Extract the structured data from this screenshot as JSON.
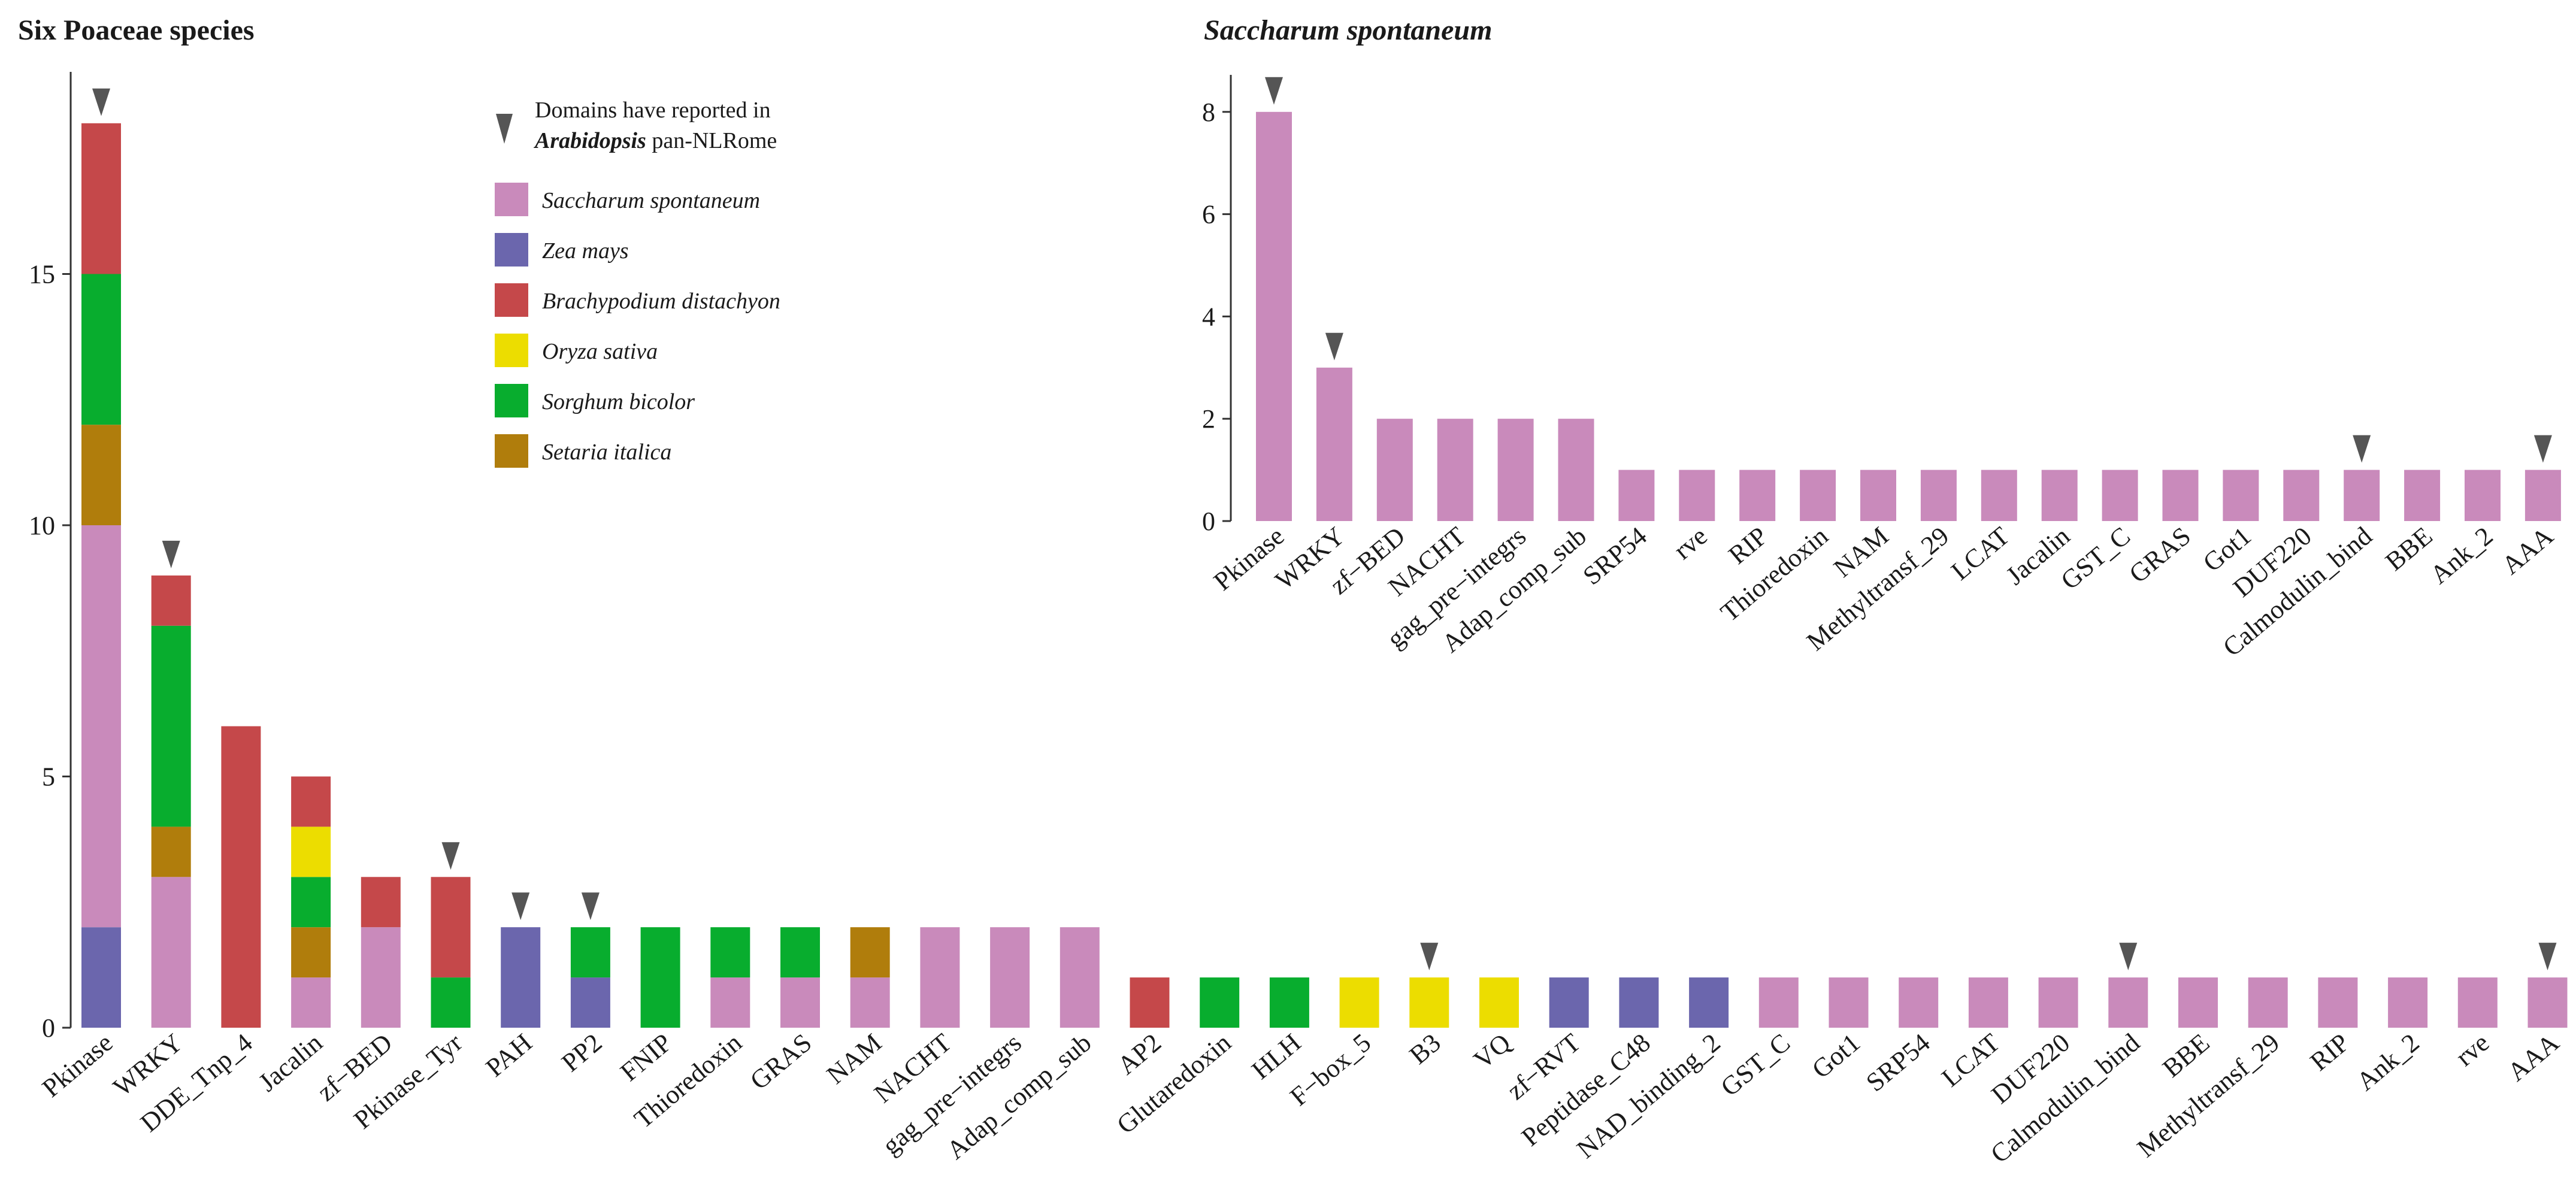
{
  "chart_data": [
    {
      "type": "bar",
      "stacked": true,
      "title": "Six Poaceae species",
      "xlabel": "",
      "ylabel": "",
      "ylim": [
        0,
        18.5
      ],
      "yticks": [
        0,
        5,
        10,
        15
      ],
      "categories": [
        "Pkinase",
        "WRKY",
        "DDE_Tnp_4",
        "Jacalin",
        "zf−BED",
        "Pkinase_Tyr",
        "PAH",
        "PP2",
        "FNIP",
        "Thioredoxin",
        "GRAS",
        "NAM",
        "NACHT",
        "gag_pre−integrs",
        "Adap_comp_sub",
        "AP2",
        "Glutaredoxin",
        "HLH",
        "F−box_5",
        "B3",
        "VQ",
        "zf−RVT",
        "Peptidase_C48",
        "NAD_binding_2",
        "GST_C",
        "Got1",
        "SRP54",
        "LCAT",
        "DUF220",
        "Calmodulin_bind",
        "BBE",
        "Methyltransf_29",
        "RIP",
        "Ank_2",
        "rve",
        "AAA"
      ],
      "series": [
        {
          "name": "Zea mays",
          "color": "#6b66ad",
          "values": [
            2,
            0,
            0,
            0,
            0,
            0,
            2,
            1,
            0,
            0,
            0,
            0,
            0,
            0,
            0,
            0,
            0,
            0,
            0,
            0,
            0,
            1,
            1,
            1,
            0,
            0,
            0,
            0,
            0,
            0,
            0,
            0,
            0,
            0,
            0,
            0
          ]
        },
        {
          "name": "Saccharum spontaneum",
          "color": "#c98abb",
          "values": [
            8,
            3,
            0,
            1,
            2,
            0,
            0,
            0,
            0,
            1,
            1,
            1,
            2,
            2,
            2,
            0,
            0,
            0,
            0,
            0,
            0,
            0,
            0,
            0,
            1,
            1,
            1,
            1,
            1,
            1,
            1,
            1,
            1,
            1,
            1,
            1
          ]
        },
        {
          "name": "Setaria italica",
          "color": "#b07d0c",
          "values": [
            2,
            1,
            0,
            1,
            0,
            0,
            0,
            0,
            0,
            0,
            0,
            1,
            0,
            0,
            0,
            0,
            0,
            0,
            0,
            0,
            0,
            0,
            0,
            0,
            0,
            0,
            0,
            0,
            0,
            0,
            0,
            0,
            0,
            0,
            0,
            0
          ]
        },
        {
          "name": "Sorghum bicolor",
          "color": "#08ad2e",
          "values": [
            3,
            4,
            0,
            1,
            0,
            1,
            0,
            1,
            2,
            1,
            1,
            0,
            0,
            0,
            0,
            0,
            1,
            1,
            0,
            0,
            0,
            0,
            0,
            0,
            0,
            0,
            0,
            0,
            0,
            0,
            0,
            0,
            0,
            0,
            0,
            0
          ]
        },
        {
          "name": "Oryza sativa",
          "color": "#ecdd00",
          "values": [
            0,
            0,
            0,
            1,
            0,
            0,
            0,
            0,
            0,
            0,
            0,
            0,
            0,
            0,
            0,
            0,
            0,
            0,
            1,
            1,
            1,
            0,
            0,
            0,
            0,
            0,
            0,
            0,
            0,
            0,
            0,
            0,
            0,
            0,
            0,
            0
          ]
        },
        {
          "name": "Brachypodium distachyon",
          "color": "#c5484a",
          "values": [
            3,
            1,
            6,
            1,
            1,
            2,
            0,
            0,
            0,
            0,
            0,
            0,
            0,
            0,
            0,
            1,
            0,
            0,
            0,
            0,
            0,
            0,
            0,
            0,
            0,
            0,
            0,
            0,
            0,
            0,
            0,
            0,
            0,
            0,
            0,
            0
          ]
        }
      ],
      "arabidopsis_markers": [
        "Pkinase",
        "WRKY",
        "Pkinase_Tyr",
        "PAH",
        "PP2",
        "B3",
        "Calmodulin_bind",
        "AAA"
      ],
      "legend": {
        "placement": "top-center",
        "marker_note_line1": "Domains have reported in",
        "marker_note_bold": "Arabidopsis",
        "marker_note_rest": "pan-NLRome",
        "order": [
          "Saccharum spontaneum",
          "Zea mays",
          "Brachypodium distachyon",
          "Oryza sativa",
          "Sorghum bicolor",
          "Setaria italica"
        ]
      }
    },
    {
      "type": "bar",
      "title": "Saccharum spontaneum",
      "xlabel": "",
      "ylabel": "",
      "ylim": [
        0,
        8.5
      ],
      "yticks": [
        0,
        2,
        4,
        6,
        8
      ],
      "color": "#c98abb",
      "categories": [
        "Pkinase",
        "WRKY",
        "zf−BED",
        "NACHT",
        "gag_pre−integrs",
        "Adap_comp_sub",
        "SRP54",
        "rve",
        "RIP",
        "Thioredoxin",
        "NAM",
        "Methyltransf_29",
        "LCAT",
        "Jacalin",
        "GST_C",
        "GRAS",
        "Got1",
        "DUF220",
        "Calmodulin_bind",
        "BBE",
        "Ank_2",
        "AAA"
      ],
      "values": [
        8,
        3,
        2,
        2,
        2,
        2,
        1,
        1,
        1,
        1,
        1,
        1,
        1,
        1,
        1,
        1,
        1,
        1,
        1,
        1,
        1,
        1
      ],
      "arabidopsis_markers": [
        "Pkinase",
        "WRKY",
        "Calmodulin_bind",
        "AAA"
      ]
    }
  ]
}
